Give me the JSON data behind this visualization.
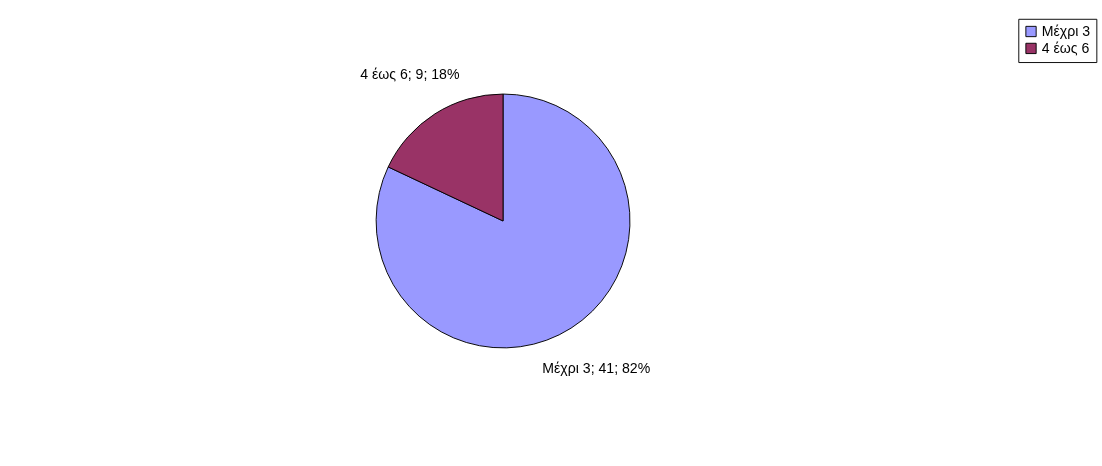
{
  "chart_data": {
    "type": "pie",
    "categories": [
      "Μέχρι 3",
      "4 έως 6"
    ],
    "values": [
      41,
      9
    ],
    "colors": [
      "#9999ff",
      "#993366"
    ],
    "value_labels": [
      "Μέχρι 3; 41; 82%",
      "4 έως 6; 9; 18%"
    ],
    "legend": "right"
  }
}
